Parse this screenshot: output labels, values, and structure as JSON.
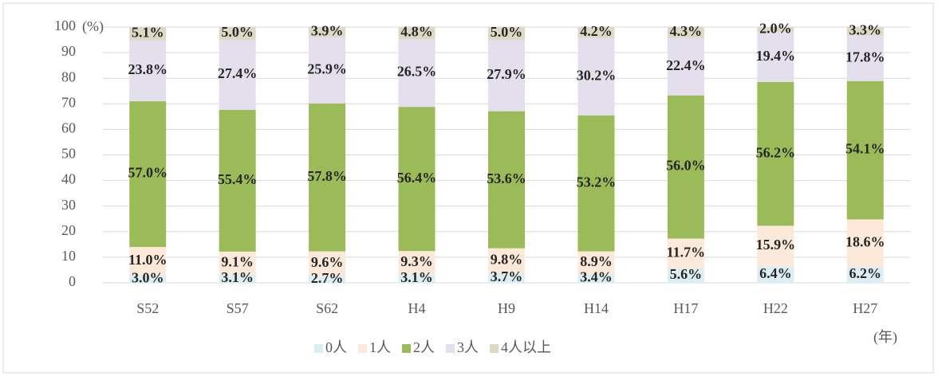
{
  "chart_data": {
    "type": "stacked_bar",
    "y_unit": "(%)",
    "x_label": "(年)",
    "categories": [
      "S52",
      "S57",
      "S62",
      "H4",
      "H9",
      "H14",
      "H17",
      "H22",
      "H27"
    ],
    "series": [
      {
        "name": "0人",
        "color": "#daeef3",
        "values": [
          3.0,
          3.1,
          2.7,
          3.1,
          3.7,
          3.4,
          5.6,
          6.4,
          6.2
        ],
        "value_labels": [
          "3.0%",
          "3.1%",
          "2.7%",
          "3.1%",
          "3.7%",
          "3.4%",
          "5.6%",
          "6.4%",
          "6.2%"
        ]
      },
      {
        "name": "1人",
        "color": "#fde9d9",
        "values": [
          11.0,
          9.1,
          9.6,
          9.3,
          9.8,
          8.9,
          11.7,
          15.9,
          18.6
        ],
        "value_labels": [
          "11.0%",
          "9.1%",
          "9.6%",
          "9.3%",
          "9.8%",
          "8.9%",
          "11.7%",
          "15.9%",
          "18.6%"
        ]
      },
      {
        "name": "2人",
        "color": "#9bbb59",
        "values": [
          57.0,
          55.4,
          57.8,
          56.4,
          53.6,
          53.2,
          56.0,
          56.2,
          54.1
        ],
        "value_labels": [
          "57.0%",
          "55.4%",
          "57.8%",
          "56.4%",
          "53.6%",
          "53.2%",
          "56.0%",
          "56.2%",
          "54.1%"
        ]
      },
      {
        "name": "3人",
        "color": "#e4dfec",
        "values": [
          23.8,
          27.4,
          25.9,
          26.5,
          27.9,
          30.2,
          22.4,
          19.4,
          17.8
        ],
        "value_labels": [
          "23.8%",
          "27.4%",
          "25.9%",
          "26.5%",
          "27.9%",
          "30.2%",
          "22.4%",
          "19.4%",
          "17.8%"
        ]
      },
      {
        "name": "4人以上",
        "color": "#ddd9c4",
        "values": [
          5.1,
          5.0,
          3.9,
          4.8,
          5.0,
          4.2,
          4.3,
          2.0,
          3.3
        ],
        "value_labels": [
          "5.1%",
          "5.0%",
          "3.9%",
          "4.8%",
          "5.0%",
          "4.2%",
          "4.3%",
          "2.0%",
          "3.3%"
        ]
      }
    ],
    "ylim": [
      0,
      100
    ],
    "yticks": [
      0,
      10,
      20,
      30,
      40,
      50,
      60,
      70,
      80,
      90,
      100
    ],
    "grid": true
  }
}
